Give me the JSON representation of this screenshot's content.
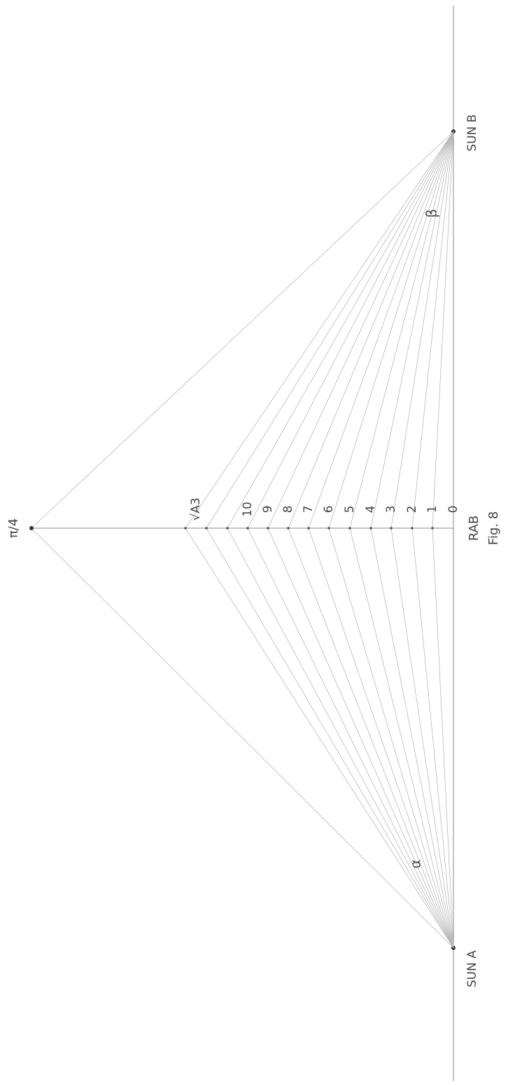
{
  "labels": {
    "sun_a": "SUN A",
    "sun_b": "SUN B",
    "axis": "RAB",
    "figure": "Fig. 8",
    "apex": "π/4",
    "alpha": "α",
    "beta": "β"
  },
  "scale": [
    "0",
    "1",
    "2",
    "3",
    "4",
    "5",
    "6",
    "7",
    "8",
    "9",
    "10",
    "√A3"
  ]
}
